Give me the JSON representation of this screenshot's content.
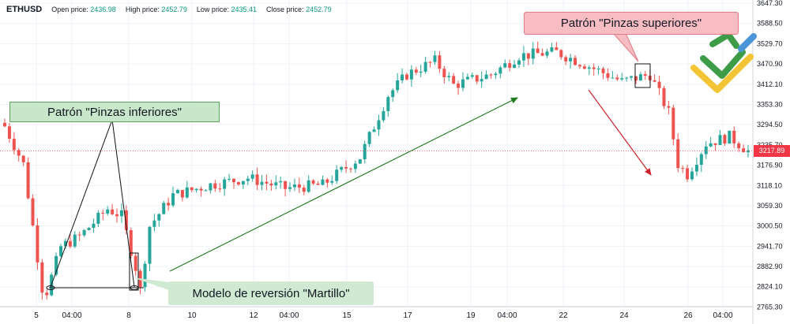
{
  "header": {
    "symbol": "ETHUSD",
    "open_label": "Open price:",
    "open_value": "2436.98",
    "high_label": "High price:",
    "high_value": "2452.79",
    "low_label": "Low price:",
    "low_value": "2435.41",
    "close_label": "Close price:",
    "close_value": "2452.79"
  },
  "current_price": "3217.89",
  "annotations": {
    "bottom_tweezers": "Patrón \"Pinzas inferiores\"",
    "top_tweezers": "Patrón \"Pinzas superiores\"",
    "hammer": "Modelo de reversión \"Martillo\""
  },
  "colors": {
    "up": "#26a69a",
    "down": "#ef5350",
    "green_arrow": "#1e7d1e",
    "red_arrow": "#d0202a",
    "price_box": "#f23645"
  },
  "logo_icon": "litefinance-logo-icon",
  "chart_data": {
    "type": "candlestick",
    "ylim": [
      2766.31,
      3647.3
    ],
    "y_ticks": [
      "3647.30",
      "3588.50",
      "3529.70",
      "3470.90",
      "3412.10",
      "3353.30",
      "3294.50",
      "3235.70",
      "3176.90",
      "3118.10",
      "3059.30",
      "3000.50",
      "2941.70",
      "2882.90",
      "2824.10",
      "2765.30"
    ],
    "x_ticks": [
      "5",
      "04:00",
      "8",
      "10",
      "12",
      "04:00",
      "15",
      "17",
      "19",
      "04:00",
      "22",
      "24",
      "26",
      "04:00"
    ],
    "candle_count": 160,
    "key_points": [
      {
        "index": 0,
        "price": 3290
      },
      {
        "index": 4,
        "price": 3180
      },
      {
        "index": 8,
        "price": 2820
      },
      {
        "index": 9,
        "price": 2810
      },
      {
        "index": 12,
        "price": 2940
      },
      {
        "index": 16,
        "price": 2970
      },
      {
        "index": 22,
        "price": 3050
      },
      {
        "index": 25,
        "price": 3030
      },
      {
        "index": 28,
        "price": 2880
      },
      {
        "index": 29,
        "price": 2815
      },
      {
        "index": 31,
        "price": 3000
      },
      {
        "index": 36,
        "price": 3090
      },
      {
        "index": 44,
        "price": 3120
      },
      {
        "index": 52,
        "price": 3140
      },
      {
        "index": 60,
        "price": 3110
      },
      {
        "index": 68,
        "price": 3120
      },
      {
        "index": 76,
        "price": 3200
      },
      {
        "index": 82,
        "price": 3380
      },
      {
        "index": 86,
        "price": 3440
      },
      {
        "index": 92,
        "price": 3480
      },
      {
        "index": 96,
        "price": 3410
      },
      {
        "index": 104,
        "price": 3440
      },
      {
        "index": 110,
        "price": 3495
      },
      {
        "index": 118,
        "price": 3505
      },
      {
        "index": 124,
        "price": 3470
      },
      {
        "index": 132,
        "price": 3420
      },
      {
        "index": 138,
        "price": 3440
      },
      {
        "index": 142,
        "price": 3330
      },
      {
        "index": 144,
        "price": 3180
      },
      {
        "index": 146,
        "price": 3150
      },
      {
        "index": 150,
        "price": 3240
      },
      {
        "index": 155,
        "price": 3260
      },
      {
        "index": 159,
        "price": 3218
      }
    ]
  }
}
